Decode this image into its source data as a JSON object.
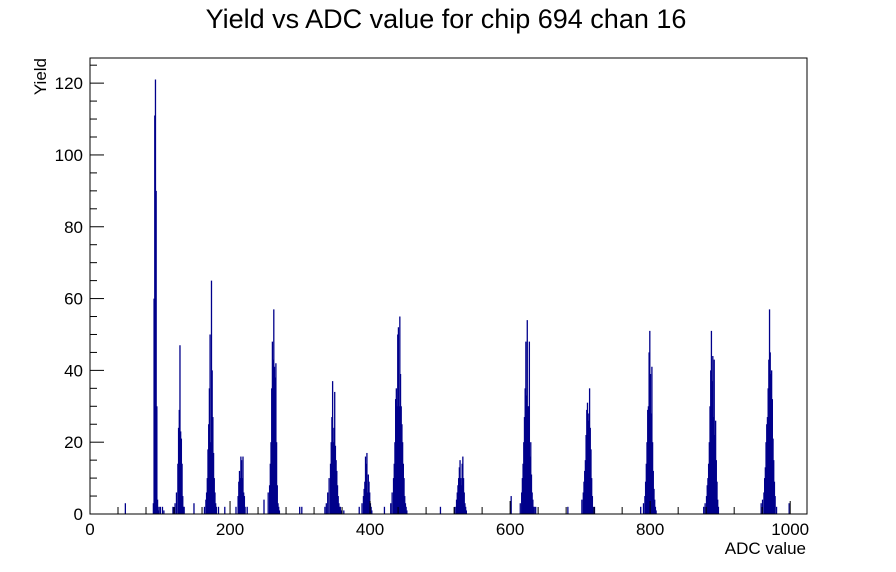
{
  "chart_data": {
    "type": "bar",
    "title": "Yield vs ADC value for chip 694 chan 16",
    "xlabel": "ADC value",
    "ylabel": "Yield",
    "xlim": [
      0,
      1024
    ],
    "ylim": [
      0,
      127
    ],
    "x_ticks": [
      0,
      200,
      400,
      600,
      800,
      1000
    ],
    "y_ticks": [
      0,
      20,
      40,
      60,
      80,
      100,
      120
    ],
    "grid": false,
    "legend": "none",
    "line_color": "#00008b",
    "bins": {
      "x": [
        50,
        90,
        91,
        92,
        93,
        94,
        95,
        96,
        97,
        98,
        100,
        103,
        105,
        118,
        121,
        123,
        125,
        126,
        127,
        128,
        129,
        130,
        131,
        132,
        133,
        134,
        148,
        163,
        165,
        166,
        167,
        168,
        169,
        170,
        171,
        172,
        173,
        174,
        175,
        176,
        177,
        178,
        179,
        180,
        183,
        192,
        208,
        211,
        212,
        213,
        214,
        215,
        216,
        217,
        218,
        219,
        220,
        221,
        224,
        248,
        254,
        256,
        257,
        258,
        259,
        260,
        261,
        262,
        263,
        264,
        265,
        266,
        267,
        268,
        269,
        270,
        299,
        302,
        335,
        337,
        339,
        341,
        343,
        344,
        345,
        346,
        347,
        348,
        349,
        350,
        351,
        352,
        353,
        354,
        355,
        356,
        357,
        358,
        359,
        362,
        384,
        388,
        390,
        391,
        392,
        393,
        394,
        395,
        396,
        397,
        398,
        399,
        400,
        401,
        402,
        420,
        429,
        431,
        433,
        434,
        435,
        436,
        437,
        438,
        439,
        440,
        441,
        442,
        443,
        444,
        445,
        446,
        447,
        448,
        449,
        450,
        451,
        452,
        500,
        521,
        523,
        524,
        525,
        526,
        527,
        528,
        529,
        530,
        531,
        532,
        533,
        534,
        535,
        536,
        537,
        601,
        614,
        616,
        617,
        618,
        619,
        620,
        621,
        622,
        623,
        624,
        625,
        626,
        627,
        628,
        629,
        630,
        631,
        632,
        633,
        634,
        636,
        682,
        702,
        704,
        705,
        706,
        707,
        708,
        709,
        710,
        711,
        712,
        713,
        714,
        715,
        716,
        717,
        718,
        720,
        786,
        790,
        792,
        793,
        794,
        795,
        796,
        797,
        798,
        799,
        800,
        801,
        802,
        803,
        804,
        805,
        806,
        807,
        808,
        876,
        878,
        880,
        881,
        882,
        883,
        884,
        885,
        886,
        887,
        888,
        889,
        890,
        891,
        892,
        893,
        894,
        895,
        896,
        897,
        958,
        960,
        962,
        963,
        964,
        965,
        966,
        967,
        968,
        969,
        970,
        971,
        972,
        973,
        974,
        975,
        976,
        977,
        978,
        980,
        998
      ],
      "y": [
        3,
        3,
        60,
        111,
        121,
        90,
        30,
        4,
        1,
        2,
        2,
        2,
        1,
        2,
        3,
        6,
        14,
        24,
        29,
        47,
        23,
        21,
        14,
        5,
        2,
        2,
        3,
        2,
        4,
        6,
        10,
        18,
        25,
        35,
        50,
        20,
        65,
        40,
        27,
        17,
        10,
        6,
        3,
        2,
        2,
        2,
        2,
        5,
        9,
        12,
        10,
        16,
        15,
        10,
        16,
        6,
        5,
        2,
        2,
        4,
        6,
        8,
        14,
        20,
        35,
        48,
        43,
        57,
        41,
        38,
        42,
        20,
        8,
        3,
        2,
        1,
        2,
        2,
        2,
        3,
        6,
        10,
        14,
        20,
        27,
        37,
        20,
        24,
        34,
        19,
        15,
        12,
        8,
        5,
        3,
        2,
        2,
        1,
        1,
        1,
        2,
        3,
        5,
        7,
        9,
        16,
        14,
        17,
        6,
        11,
        9,
        6,
        3,
        2,
        1,
        2,
        3,
        6,
        10,
        14,
        20,
        32,
        35,
        30,
        50,
        52,
        30,
        55,
        39,
        30,
        25,
        20,
        14,
        10,
        5,
        3,
        2,
        1,
        2,
        2,
        4,
        6,
        8,
        10,
        13,
        15,
        10,
        8,
        14,
        16,
        10,
        6,
        3,
        2,
        1,
        5,
        3,
        6,
        10,
        14,
        20,
        27,
        35,
        48,
        33,
        54,
        30,
        30,
        48,
        16,
        20,
        11,
        6,
        4,
        2,
        2,
        2,
        2,
        4,
        6,
        9,
        12,
        15,
        22,
        29,
        31,
        28,
        26,
        35,
        24,
        18,
        10,
        5,
        2,
        2,
        2,
        3,
        5,
        9,
        14,
        20,
        29,
        30,
        45,
        51,
        39,
        28,
        41,
        20,
        12,
        7,
        4,
        2,
        1,
        2,
        3,
        5,
        8,
        10,
        14,
        20,
        30,
        40,
        51,
        37,
        44,
        27,
        43,
        22,
        26,
        15,
        9,
        4,
        2,
        3,
        4,
        6,
        10,
        13,
        20,
        25,
        27,
        35,
        43,
        57,
        45,
        39,
        40,
        32,
        21,
        15,
        9,
        5,
        2,
        3
      ]
    }
  }
}
